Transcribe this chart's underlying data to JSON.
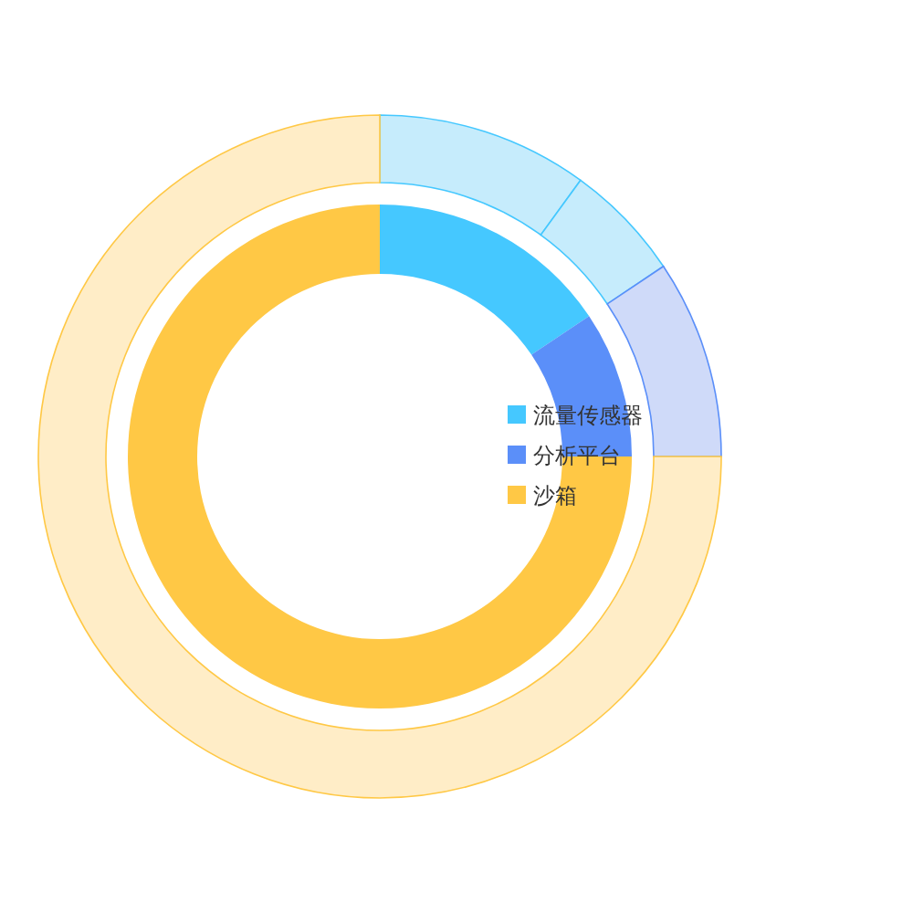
{
  "chart_data": [
    {
      "type": "donut",
      "categories": [
        null,
        null,
        null,
        null
      ],
      "values": [
        10,
        5.6,
        9.4,
        75
      ],
      "colors": [
        "#c6ecfc",
        "#c6ecfc",
        "#cfdaf9",
        "#ffedc7"
      ],
      "legend": false
    },
    {
      "type": "donut",
      "categories": [
        "流量传感器",
        "分析平台",
        "沙箱"
      ],
      "values": [
        15.6,
        9.4,
        75
      ],
      "colors": [
        "#45c8ff",
        "#5b8ff9",
        "#ffc845"
      ],
      "legend": "right"
    }
  ]
}
